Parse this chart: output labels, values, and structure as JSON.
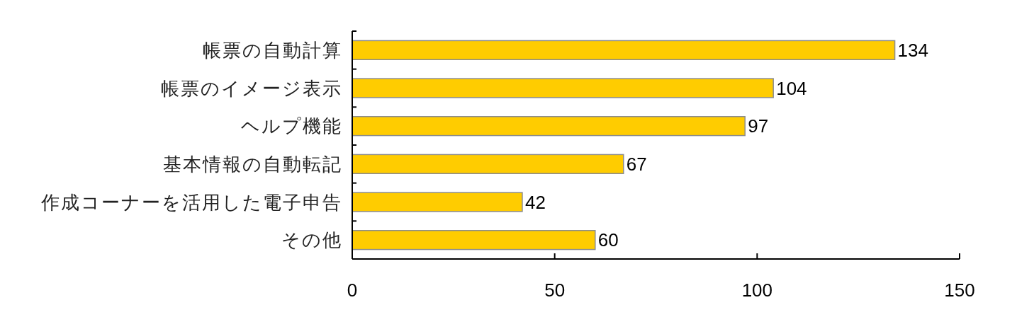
{
  "chart_data": {
    "type": "bar",
    "orientation": "horizontal",
    "categories": [
      "帳票の自動計算",
      "帳票のイメージ表示",
      "ヘルプ機能",
      "基本情報の自動転記",
      "作成コーナーを活用した電子申告",
      "その他"
    ],
    "values": [
      134,
      104,
      97,
      67,
      42,
      60
    ],
    "color": "#ffcc00",
    "xlim": [
      0,
      150
    ],
    "xticks": [
      0,
      50,
      100,
      150
    ],
    "data_labels": true
  }
}
